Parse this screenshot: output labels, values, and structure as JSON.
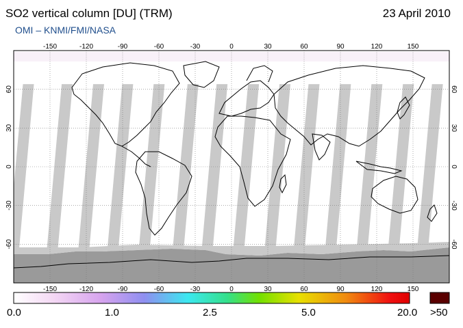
{
  "header": {
    "title": "SO2 vertical column [DU] (TRM)",
    "date": "23 April 2010",
    "credit": "OMI – KNMI/FMI/NASA"
  },
  "map": {
    "projection": "equirectangular",
    "lon_range": [
      -180,
      180
    ],
    "lat_range": [
      -90,
      90
    ],
    "lon_ticks": [
      "-150",
      "-120",
      "-90",
      "-60",
      "-30",
      "0",
      "30",
      "60",
      "90",
      "120",
      "150"
    ],
    "lat_ticks": [
      "60",
      "30",
      "0",
      "-30",
      "-60"
    ],
    "grid": "dotted",
    "swath_color": "#c9c9c9",
    "swath_dark_color": "#9f9f9f",
    "background_color": "#ffffff",
    "coastline_color": "#000000"
  },
  "colorbar": {
    "labels": [
      "0.0",
      "1.0",
      "2.5",
      "5.0",
      "20.0",
      ">50"
    ],
    "colors": [
      "#ffffff",
      "#f4d8f4",
      "#d7a4ee",
      "#8f8ff0",
      "#3ce8f0",
      "#34e08a",
      "#72e000",
      "#e8e000",
      "#f08a10",
      "#f01010",
      "#e00000"
    ],
    "overflow_color": "#5a0000"
  }
}
